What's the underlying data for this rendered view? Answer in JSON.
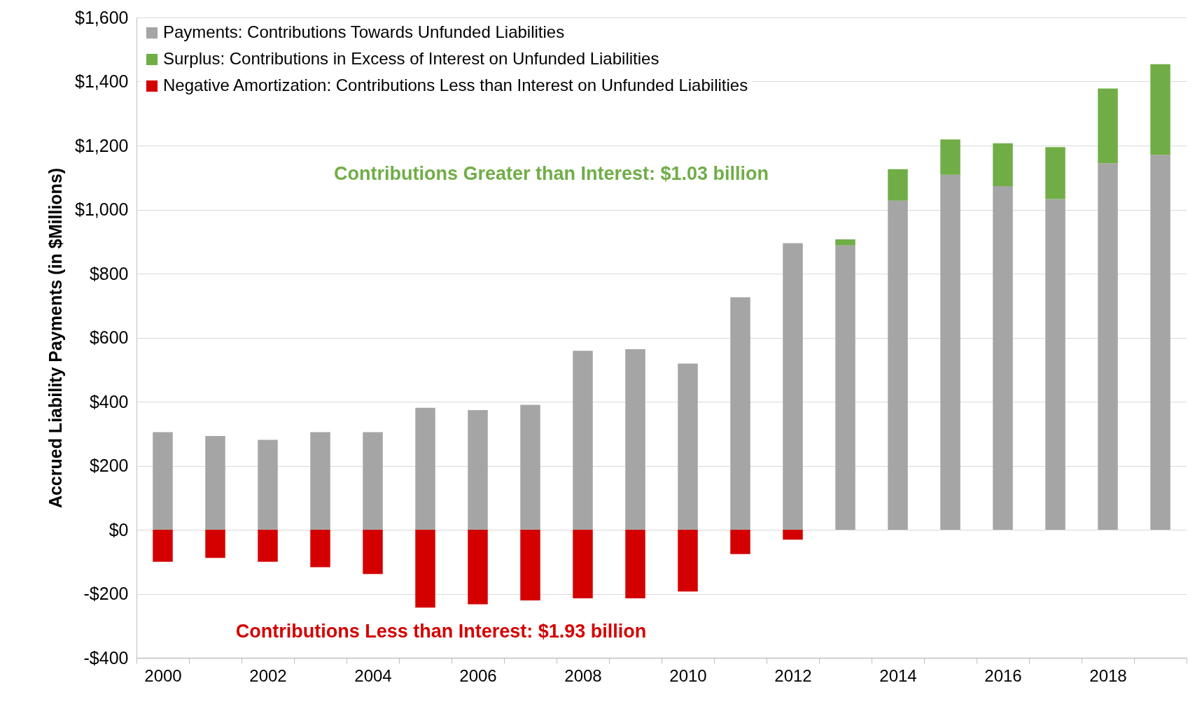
{
  "chart_data": {
    "type": "bar",
    "stacked": true,
    "ylabel": "Accrued Liability Payments (in $Millions)",
    "categories": [
      "2000",
      null,
      "2002",
      null,
      "2004",
      null,
      "2006",
      null,
      "2008",
      null,
      "2010",
      null,
      "2012",
      null,
      "2014",
      null,
      "2016",
      null,
      "2018",
      null
    ],
    "series": [
      {
        "name": "Payments: Contributions Towards Unfunded Liabilities",
        "color": "#a5a5a5",
        "values": [
          305,
          293,
          281,
          305,
          305,
          381,
          374,
          390,
          559,
          564,
          519,
          726,
          895,
          888,
          1028,
          1109,
          1073,
          1033,
          1145,
          1171
        ]
      },
      {
        "name": "Surplus: Contributions in Excess of Interest on Unfunded Liabilities",
        "color": "#70ad47",
        "values": [
          null,
          null,
          null,
          null,
          null,
          null,
          null,
          null,
          null,
          null,
          null,
          null,
          null,
          19,
          98,
          110,
          134,
          162,
          233,
          283
        ]
      },
      {
        "name": "Negative Amortization: Contributions Less than Interest on Unfunded Liabilities",
        "color": "#d40000",
        "values": [
          -100,
          -88,
          -100,
          -117,
          -138,
          -243,
          -233,
          -221,
          -214,
          -214,
          -193,
          -76,
          -31,
          null,
          null,
          null,
          null,
          null,
          null,
          null
        ]
      }
    ],
    "ylim": [
      -400,
      1600
    ],
    "yticks": [
      {
        "value": -400,
        "label": "-$400"
      },
      {
        "value": -200,
        "label": "-$200"
      },
      {
        "value": 0,
        "label": "$0"
      },
      {
        "value": 200,
        "label": "$200"
      },
      {
        "value": 400,
        "label": "$400"
      },
      {
        "value": 600,
        "label": "$600"
      },
      {
        "value": 800,
        "label": "$800"
      },
      {
        "value": 1000,
        "label": "$1,000"
      },
      {
        "value": 1200,
        "label": "$1,200"
      },
      {
        "value": 1400,
        "label": "$1,400"
      },
      {
        "value": 1600,
        "label": "$1,600"
      }
    ],
    "grid": "y",
    "legend": "top left",
    "annotations": [
      "Contributions Greater than Interest: $1.03 billion",
      "Contributions Less than Interest: $1.93 billion"
    ]
  }
}
